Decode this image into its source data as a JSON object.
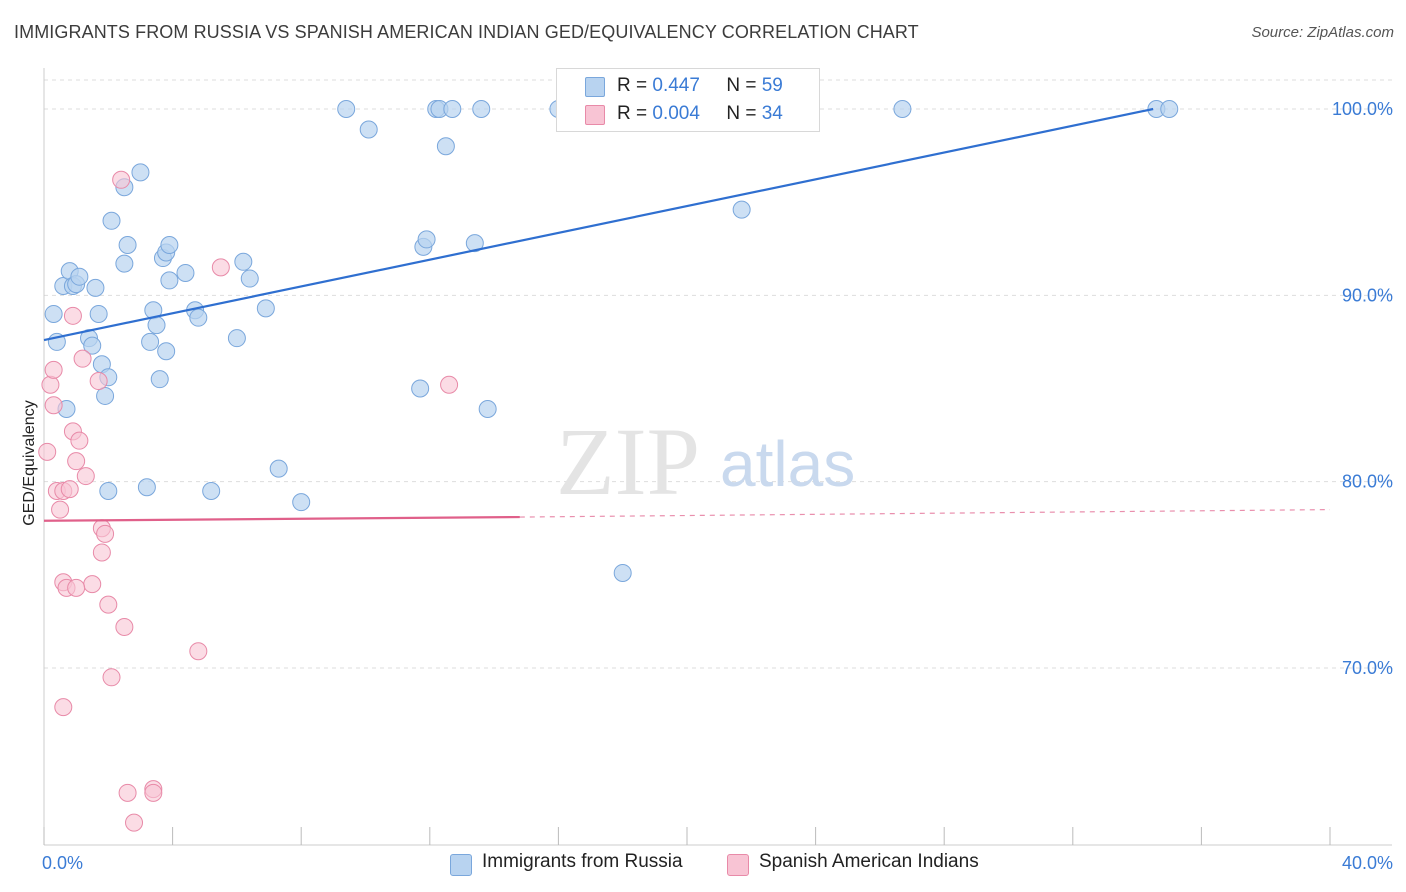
{
  "title": "IMMIGRANTS FROM RUSSIA VS SPANISH AMERICAN INDIAN GED/EQUIVALENCY CORRELATION CHART",
  "source": "Source: ZipAtlas.com",
  "watermark": {
    "zip": "ZIP",
    "atlas": "atlas"
  },
  "colors": {
    "blue_fill": "#b8d3f0",
    "blue_stroke": "#7aa7dc",
    "blue_line": "#2f6fd0",
    "pink_fill": "#f8c4d4",
    "pink_stroke": "#e88aa8",
    "pink_line": "#e0608a",
    "accent_text": "#3a7bd5",
    "grid": "#dddddd"
  },
  "legend": [
    {
      "r_label": "R =",
      "r_value": "0.447",
      "n_label": "N =",
      "n_value": "59"
    },
    {
      "r_label": "R =",
      "r_value": "0.004",
      "n_label": "N =",
      "n_value": "34"
    }
  ],
  "chart_data": {
    "type": "scatter",
    "title": "IMMIGRANTS FROM RUSSIA VS SPANISH AMERICAN INDIAN GED/EQUIVALENCY CORRELATION CHART",
    "xlabel": "",
    "ylabel": "GED/Equivalency",
    "xlim": [
      0,
      40
    ],
    "ylim": [
      60.5,
      102.2
    ],
    "x_tick_labels": [
      "0.0%",
      "40.0%"
    ],
    "y_ticks": [
      70,
      80,
      90,
      100
    ],
    "y_tick_labels": [
      "70.0%",
      "80.0%",
      "90.0%",
      "100.0%"
    ],
    "grid": true,
    "series": [
      {
        "name": "Immigrants from Russia",
        "color": "blue",
        "trend": {
          "x0": 0.0,
          "y0": 87.6,
          "x1": 34.5,
          "y1": 100.0
        },
        "points": [
          [
            0.3,
            89.0
          ],
          [
            0.4,
            87.5
          ],
          [
            0.6,
            90.5
          ],
          [
            0.8,
            91.3
          ],
          [
            0.9,
            90.5
          ],
          [
            1.0,
            90.6
          ],
          [
            1.1,
            91.0
          ],
          [
            0.7,
            83.9
          ],
          [
            1.6,
            90.4
          ],
          [
            1.4,
            87.7
          ],
          [
            1.5,
            87.3
          ],
          [
            1.7,
            89.0
          ],
          [
            1.8,
            86.3
          ],
          [
            1.9,
            84.6
          ],
          [
            2.0,
            85.6
          ],
          [
            2.1,
            94.0
          ],
          [
            2.5,
            95.8
          ],
          [
            2.5,
            91.7
          ],
          [
            2.6,
            92.7
          ],
          [
            3.0,
            96.6
          ],
          [
            3.3,
            87.5
          ],
          [
            3.4,
            89.2
          ],
          [
            3.5,
            88.4
          ],
          [
            3.6,
            85.5
          ],
          [
            3.7,
            92.0
          ],
          [
            3.8,
            92.3
          ],
          [
            3.9,
            92.7
          ],
          [
            3.8,
            87.0
          ],
          [
            3.9,
            90.8
          ],
          [
            4.4,
            91.2
          ],
          [
            4.7,
            89.2
          ],
          [
            4.8,
            88.8
          ],
          [
            5.2,
            79.5
          ],
          [
            6.2,
            91.8
          ],
          [
            6.0,
            87.7
          ],
          [
            6.4,
            90.9
          ],
          [
            6.9,
            89.3
          ],
          [
            7.3,
            80.7
          ],
          [
            8.0,
            78.9
          ],
          [
            9.4,
            100.0
          ],
          [
            10.1,
            98.9
          ],
          [
            11.7,
            85.0
          ],
          [
            11.8,
            92.6
          ],
          [
            11.9,
            93.0
          ],
          [
            12.2,
            100.0
          ],
          [
            12.3,
            100.0
          ],
          [
            12.5,
            98.0
          ],
          [
            12.7,
            100.0
          ],
          [
            13.4,
            92.8
          ],
          [
            13.6,
            100.0
          ],
          [
            13.8,
            83.9
          ],
          [
            16.0,
            100.0
          ],
          [
            18.0,
            75.1
          ],
          [
            21.7,
            94.6
          ],
          [
            26.7,
            100.0
          ],
          [
            34.6,
            100.0
          ],
          [
            35.0,
            100.0
          ],
          [
            3.2,
            79.7
          ],
          [
            2.0,
            79.5
          ]
        ]
      },
      {
        "name": "Spanish American Indians",
        "color": "pink",
        "trend": {
          "x0": 0.0,
          "y0": 77.9,
          "x1": 14.8,
          "y1": 78.1,
          "dash_to_x": 40.0,
          "dash_to_y": 78.5
        },
        "points": [
          [
            0.1,
            81.6
          ],
          [
            0.2,
            85.2
          ],
          [
            0.3,
            86.0
          ],
          [
            0.3,
            84.1
          ],
          [
            0.4,
            79.5
          ],
          [
            0.5,
            78.5
          ],
          [
            0.6,
            79.5
          ],
          [
            0.6,
            74.6
          ],
          [
            0.7,
            74.3
          ],
          [
            0.8,
            79.6
          ],
          [
            0.9,
            88.9
          ],
          [
            0.9,
            82.7
          ],
          [
            1.0,
            81.1
          ],
          [
            1.1,
            82.2
          ],
          [
            1.2,
            86.6
          ],
          [
            1.3,
            80.3
          ],
          [
            1.5,
            74.5
          ],
          [
            1.7,
            85.4
          ],
          [
            1.8,
            77.5
          ],
          [
            1.8,
            76.2
          ],
          [
            1.9,
            77.2
          ],
          [
            2.0,
            73.4
          ],
          [
            2.1,
            69.5
          ],
          [
            2.4,
            96.2
          ],
          [
            2.5,
            72.2
          ],
          [
            0.6,
            67.9
          ],
          [
            2.6,
            63.3
          ],
          [
            2.8,
            61.7
          ],
          [
            3.4,
            63.5
          ],
          [
            3.4,
            63.3
          ],
          [
            4.8,
            70.9
          ],
          [
            5.5,
            91.5
          ],
          [
            12.6,
            85.2
          ],
          [
            1.0,
            74.3
          ]
        ]
      }
    ]
  }
}
